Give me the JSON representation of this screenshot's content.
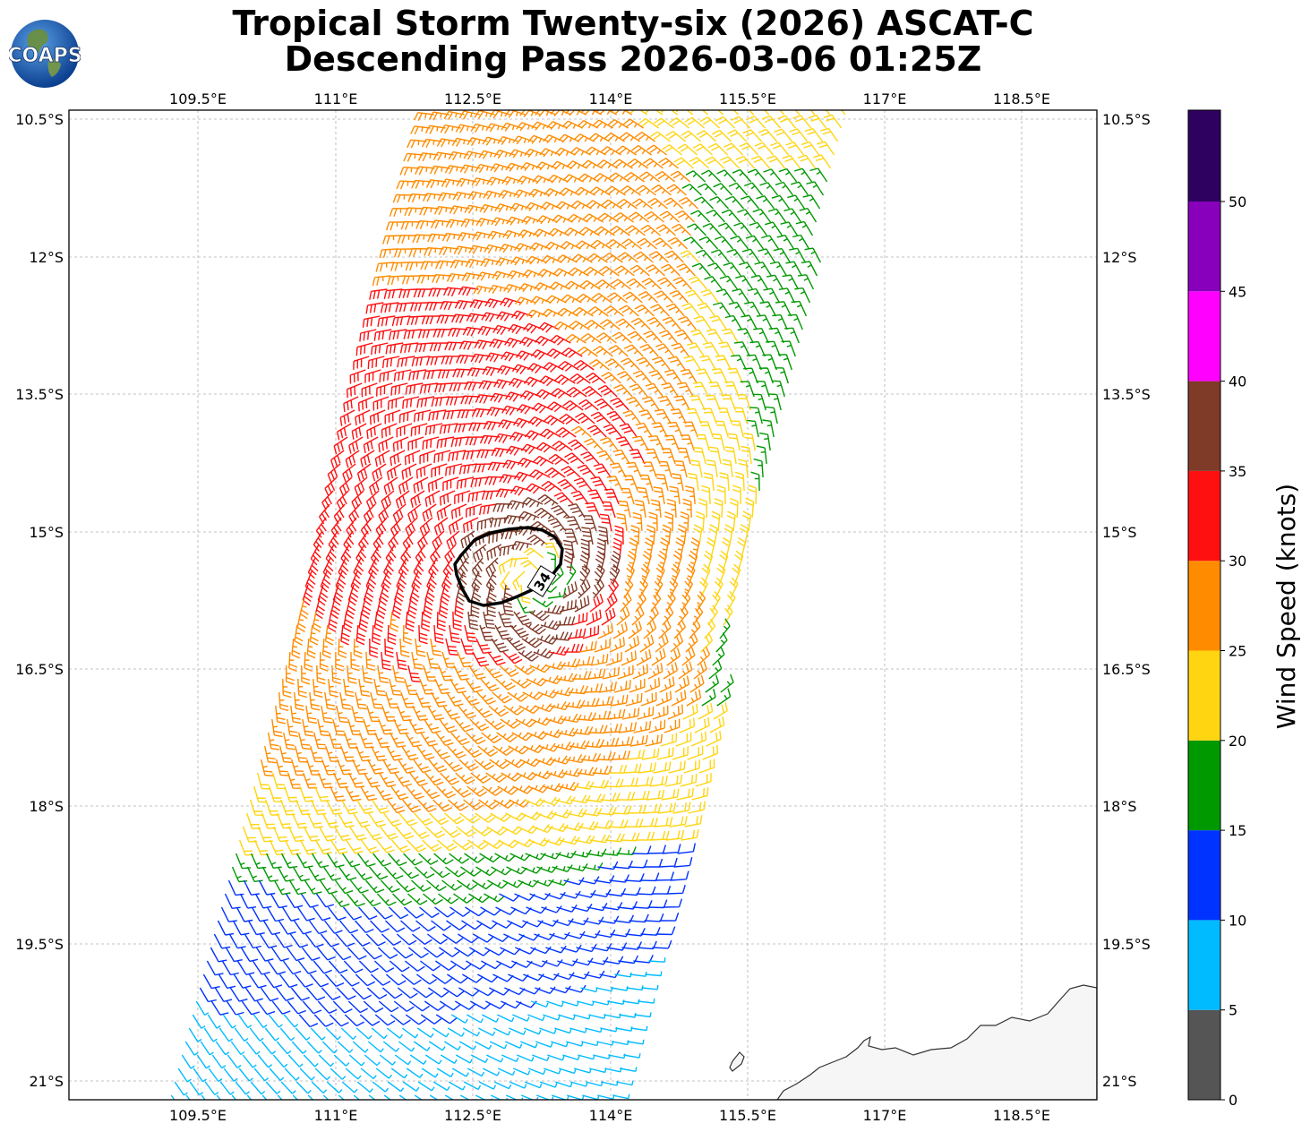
{
  "title": {
    "line1": "Tropical Storm Twenty-six (2026) ASCAT-C",
    "line2": "Descending Pass 2026-03-06 01:25Z"
  },
  "logo": {
    "text": "COAPS",
    "icon": "globe-icon"
  },
  "map": {
    "lon_ticks": [
      "109.5°E",
      "111°E",
      "112.5°E",
      "114°E",
      "115.5°E",
      "117°E",
      "118.5°E"
    ],
    "lat_ticks": [
      "10.5°S",
      "12°S",
      "13.5°S",
      "15°S",
      "16.5°S",
      "18°S",
      "19.5°S",
      "21°S"
    ],
    "contour_label": "34",
    "gridlines": true,
    "coastline": "Australia (bottom-right)"
  },
  "colorbar": {
    "label": "Wind Speed (knots)",
    "ticks": [
      "0",
      "5",
      "10",
      "15",
      "20",
      "25",
      "30",
      "35",
      "40",
      "45",
      "50"
    ],
    "colors": [
      "#555555",
      "#00bbff",
      "#0033ff",
      "#009900",
      "#ffd511",
      "#ff8c00",
      "#ff1010",
      "#803a28",
      "#ff00ff",
      "#8800bb",
      "#2e0060"
    ]
  },
  "storm": {
    "center_lon": 113.6,
    "center_lat": -15.7
  }
}
